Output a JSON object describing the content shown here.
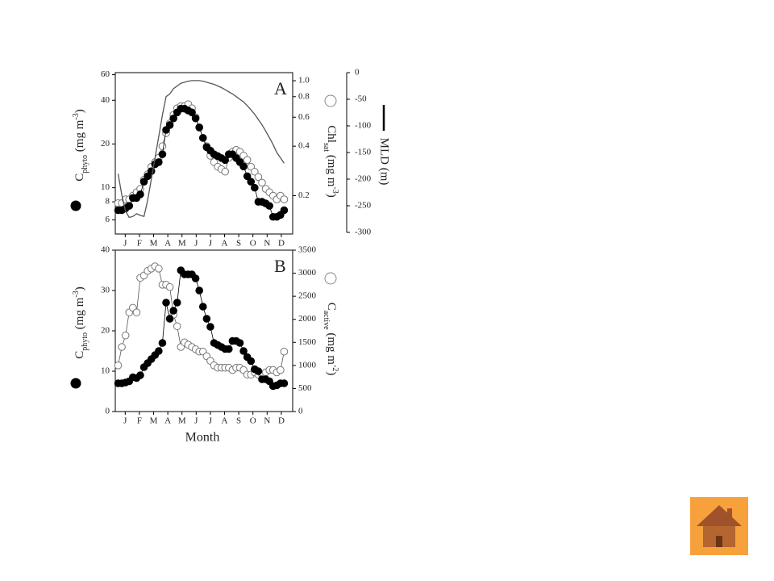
{
  "chart_data": [
    {
      "type": "line",
      "panel_label": "A",
      "categories": [
        "J",
        "F",
        "M",
        "A",
        "M",
        "J",
        "J",
        "A",
        "S",
        "O",
        "N",
        "D"
      ],
      "xlim": [
        -0.2,
        12.3
      ],
      "xticks": [
        {
          "value": 0.5,
          "label": "J"
        },
        {
          "value": 1.5,
          "label": "F"
        },
        {
          "value": 2.5,
          "label": "M"
        },
        {
          "value": 3.5,
          "label": "A"
        },
        {
          "value": 4.5,
          "label": "M"
        },
        {
          "value": 5.5,
          "label": "J"
        },
        {
          "value": 6.5,
          "label": "J"
        },
        {
          "value": 7.5,
          "label": "A"
        },
        {
          "value": 8.5,
          "label": "S"
        },
        {
          "value": 9.5,
          "label": "O"
        },
        {
          "value": 10.5,
          "label": "N"
        },
        {
          "value": 11.5,
          "label": "D"
        }
      ],
      "x": [
        0,
        0.26,
        0.52,
        0.78,
        1.04,
        1.3,
        1.56,
        1.82,
        2.08,
        2.34,
        2.6,
        2.86,
        3.12,
        3.38,
        3.64,
        3.9,
        4.16,
        4.42,
        4.68,
        4.94,
        5.2,
        5.46,
        5.72,
        5.98,
        6.24,
        6.5,
        6.76,
        7.02,
        7.28,
        7.54,
        7.8,
        8.06,
        8.32,
        8.58,
        8.84,
        9.1,
        9.36,
        9.62,
        9.88,
        10.14,
        10.4,
        10.66,
        10.92,
        11.18,
        11.44,
        11.7
      ],
      "ylabel": [
        "C",
        "phyto",
        " (mg m",
        "-3",
        ")"
      ],
      "ylim": [
        4.8,
        62
      ],
      "yscale": "log",
      "yticks": [
        6,
        8,
        10,
        20,
        40,
        60
      ],
      "y2label": [
        "Chl",
        "sat",
        " (mg m",
        "-3",
        ")"
      ],
      "y2lim": [
        0.117,
        1.12
      ],
      "y2scale": "log",
      "y2ticks": [
        0.2,
        0.4,
        0.6,
        0.8,
        {
          "value": 1,
          "label": "1.0"
        }
      ],
      "y3label": "MLD (m)",
      "y3lim": [
        -300,
        0
      ],
      "y3ticks": [
        0,
        -50,
        -100,
        -150,
        -200,
        -250,
        -300
      ],
      "series": [
        {
          "marker": "open",
          "axis": "y2",
          "color": "#555555",
          "values": [
            0.18,
            0.18,
            0.19,
            0.19,
            0.2,
            0.21,
            0.22,
            0.25,
            0.27,
            0.3,
            0.32,
            0.34,
            0.4,
            0.48,
            0.55,
            0.62,
            0.68,
            0.7,
            0.7,
            0.72,
            0.68,
            0.6,
            0.52,
            0.45,
            0.4,
            0.35,
            0.32,
            0.3,
            0.29,
            0.28,
            0.34,
            0.37,
            0.38,
            0.37,
            0.35,
            0.33,
            0.3,
            0.28,
            0.26,
            0.24,
            0.22,
            0.21,
            0.2,
            0.19,
            0.2,
            0.19
          ]
        },
        {
          "marker": "filled",
          "axis": "y",
          "color": "#000000",
          "values": [
            7,
            7,
            7.2,
            7.5,
            8.5,
            8.5,
            9,
            11,
            12,
            13,
            14.5,
            15,
            17,
            25,
            27,
            30,
            33,
            35,
            35,
            34,
            33,
            30,
            26,
            22,
            19,
            18,
            17,
            16.5,
            16,
            15.5,
            17,
            17,
            16,
            15,
            14,
            12,
            11,
            10,
            8,
            8,
            7.8,
            7.5,
            6.3,
            6.3,
            6.5,
            7
          ]
        },
        {
          "marker": "none",
          "axis": "y3",
          "color": "#555555",
          "values": [
            -190,
            -230,
            -260,
            -272,
            -270,
            -265,
            -268,
            -270,
            -240,
            -200,
            -160,
            -120,
            -80,
            -45,
            -40,
            -30,
            -25,
            -20,
            -18,
            -16,
            -15,
            -15,
            -15,
            -16,
            -18,
            -20,
            -22,
            -25,
            -28,
            -32,
            -36,
            -40,
            -45,
            -50,
            -55,
            -62,
            -70,
            -78,
            -88,
            -98,
            -110,
            -122,
            -135,
            -150,
            -160,
            -170
          ]
        }
      ]
    },
    {
      "type": "line",
      "panel_label": "B",
      "xlabel": "Month",
      "categories": [
        "J",
        "F",
        "M",
        "A",
        "M",
        "J",
        "J",
        "A",
        "S",
        "O",
        "N",
        "D"
      ],
      "xlim": [
        -0.2,
        12.3
      ],
      "xticks": [
        {
          "value": 0.5,
          "label": "J"
        },
        {
          "value": 1.5,
          "label": "F"
        },
        {
          "value": 2.5,
          "label": "M"
        },
        {
          "value": 3.5,
          "label": "A"
        },
        {
          "value": 4.5,
          "label": "M"
        },
        {
          "value": 5.5,
          "label": "J"
        },
        {
          "value": 6.5,
          "label": "J"
        },
        {
          "value": 7.5,
          "label": "A"
        },
        {
          "value": 8.5,
          "label": "S"
        },
        {
          "value": 9.5,
          "label": "O"
        },
        {
          "value": 10.5,
          "label": "N"
        },
        {
          "value": 11.5,
          "label": "D"
        }
      ],
      "x": [
        0,
        0.26,
        0.52,
        0.78,
        1.04,
        1.3,
        1.56,
        1.82,
        2.08,
        2.34,
        2.6,
        2.86,
        3.12,
        3.38,
        3.64,
        3.9,
        4.16,
        4.42,
        4.68,
        4.94,
        5.2,
        5.46,
        5.72,
        5.98,
        6.24,
        6.5,
        6.76,
        7.02,
        7.28,
        7.54,
        7.8,
        8.06,
        8.32,
        8.58,
        8.84,
        9.1,
        9.36,
        9.62,
        9.88,
        10.14,
        10.4,
        10.66,
        10.92,
        11.18,
        11.44,
        11.7
      ],
      "ylabel": [
        "C",
        "phyto",
        " (mg m",
        "-3",
        ")"
      ],
      "ylim": [
        0,
        40
      ],
      "yticks": [
        0,
        10,
        20,
        30,
        40
      ],
      "y2label": [
        "C",
        "active",
        " (mg m",
        "-2",
        ")"
      ],
      "y2lim": [
        0,
        3500
      ],
      "y2ticks": [
        0,
        500,
        1000,
        1500,
        2000,
        2500,
        3000,
        3500
      ],
      "series": [
        {
          "marker": "open",
          "axis": "y2",
          "color": "#555555",
          "values": [
            1000,
            1400,
            1650,
            2150,
            2250,
            2150,
            2900,
            2950,
            3050,
            3100,
            3150,
            3100,
            2750,
            2750,
            2700,
            2100,
            1850,
            1400,
            1500,
            1450,
            1400,
            1350,
            1300,
            1300,
            1200,
            1100,
            1000,
            950,
            950,
            950,
            950,
            900,
            950,
            950,
            900,
            800,
            800,
            850,
            800,
            800,
            850,
            900,
            900,
            850,
            900,
            1300
          ]
        },
        {
          "marker": "filled",
          "axis": "y",
          "color": "#000000",
          "values": [
            7,
            7,
            7.2,
            7.5,
            8.5,
            8.3,
            9,
            11,
            12,
            13,
            14,
            15,
            17,
            27,
            23,
            25,
            27,
            35,
            34,
            34,
            34,
            33,
            30,
            26,
            23,
            21,
            17,
            16.5,
            16,
            15.5,
            15.5,
            17.5,
            17.5,
            17,
            15,
            13.5,
            12.5,
            10.5,
            10,
            8,
            8,
            7.5,
            6.3,
            6.5,
            7,
            7
          ]
        }
      ]
    }
  ]
}
